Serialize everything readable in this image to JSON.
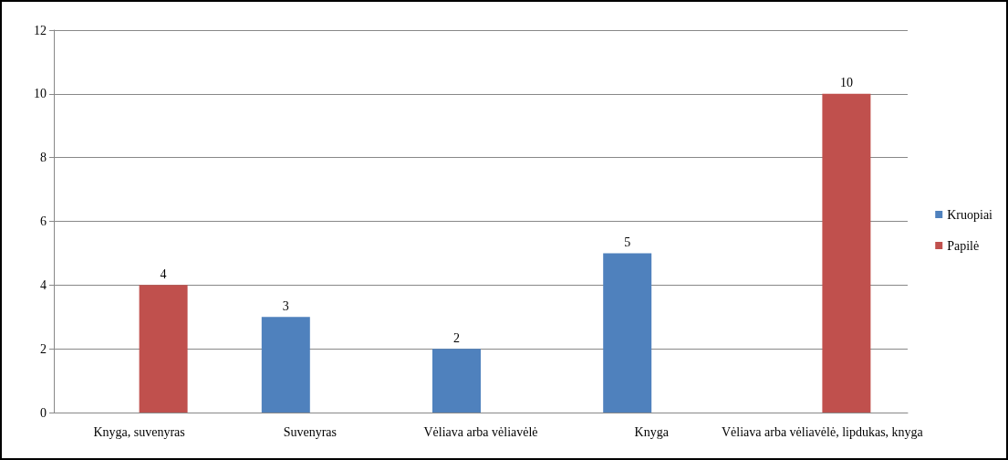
{
  "chart_data": {
    "type": "bar",
    "categories": [
      "Knyga, suvenyras",
      "Suvenyras",
      "Vėliava arba vėliavėlė",
      "Knyga",
      "Vėliava arba vėliavėlė, lipdukas, knyga"
    ],
    "series": [
      {
        "name": "Kruopiai",
        "color": "#4f81bd",
        "values": [
          null,
          3,
          2,
          5,
          null
        ]
      },
      {
        "name": "Papilė",
        "color": "#c0504d",
        "values": [
          4,
          null,
          null,
          null,
          10
        ]
      }
    ],
    "ylim": [
      0,
      12
    ],
    "yticks": [
      0,
      2,
      4,
      6,
      8,
      10,
      12
    ],
    "grid": "y",
    "legend": "right",
    "data_labels": true
  }
}
